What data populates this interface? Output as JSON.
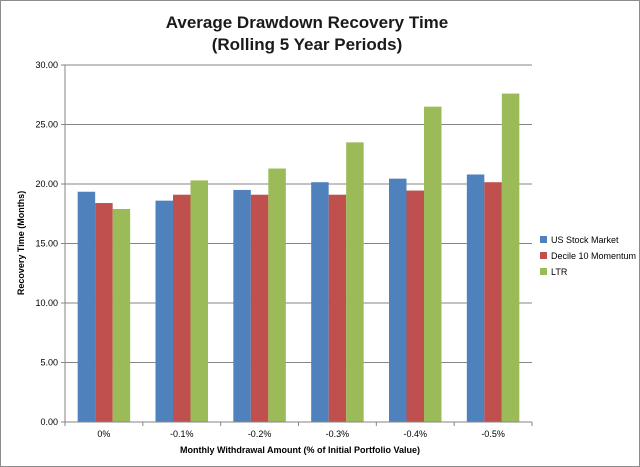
{
  "chart_data": {
    "type": "bar",
    "title": "Average Drawdown Recovery Time",
    "subtitle": "(Rolling 5 Year Periods)",
    "xlabel": "Monthly Withdrawal Amount (% of Initial Portfolio Value)",
    "ylabel": "Recovery Time (Months)",
    "ylim": [
      0,
      30
    ],
    "yticks": [
      "0.00",
      "5.00",
      "10.00",
      "15.00",
      "20.00",
      "25.00",
      "30.00"
    ],
    "ytick_values": [
      0,
      5,
      10,
      15,
      20,
      25,
      30
    ],
    "grid": true,
    "legend_position": "right",
    "categories": [
      "0%",
      "-0.1%",
      "-0.2%",
      "-0.3%",
      "-0.4%",
      "-0.5%"
    ],
    "series": [
      {
        "name": "US Stock Market",
        "color": "#4f81bd",
        "values": [
          19.35,
          18.6,
          19.5,
          20.15,
          20.45,
          20.8
        ]
      },
      {
        "name": "Decile 10 Momentum",
        "color": "#c0504d",
        "values": [
          18.4,
          19.1,
          19.1,
          19.1,
          19.45,
          20.15
        ]
      },
      {
        "name": "LTR",
        "color": "#9bbb59",
        "values": [
          17.9,
          20.3,
          21.3,
          23.5,
          26.5,
          27.6
        ]
      }
    ]
  }
}
